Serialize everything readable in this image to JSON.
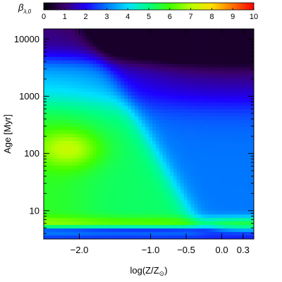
{
  "chart_data": {
    "type": "heatmap",
    "colorbar": {
      "label_main": "β",
      "label_sub": "λ,0",
      "range": [
        0,
        10
      ],
      "ticks": [
        "0",
        "1",
        "2",
        "3",
        "4",
        "5",
        "6",
        "7",
        "8",
        "9",
        "10"
      ],
      "colors": [
        "#000000",
        "#3b006b",
        "#1e00ff",
        "#0078ff",
        "#00e0ff",
        "#00ff80",
        "#40ff00",
        "#b8ff00",
        "#ffe000",
        "#ff7000",
        "#ff0000"
      ]
    },
    "x_axis": {
      "label_main": "log(Z/Z",
      "label_sub": "⊙",
      "label_end": ")",
      "range": [
        -2.5,
        0.45
      ],
      "ticks": [
        {
          "value": -2.0,
          "label": "−2.0"
        },
        {
          "value": -1.0,
          "label": "−1.0"
        },
        {
          "value": -0.5,
          "label": "−0.5"
        },
        {
          "value": 0.0,
          "label": "0.0"
        },
        {
          "value": 0.3,
          "label": "0.3"
        }
      ]
    },
    "y_axis": {
      "label_main": "Age",
      "label_unit": "[Myr]",
      "scale": "log",
      "range": [
        3.2,
        15000
      ],
      "ticks": [
        {
          "value": 10,
          "label": "10"
        },
        {
          "value": 100,
          "label": "100"
        },
        {
          "value": 1000,
          "label": "1000"
        },
        {
          "value": 10000,
          "label": "10000"
        }
      ]
    }
  }
}
